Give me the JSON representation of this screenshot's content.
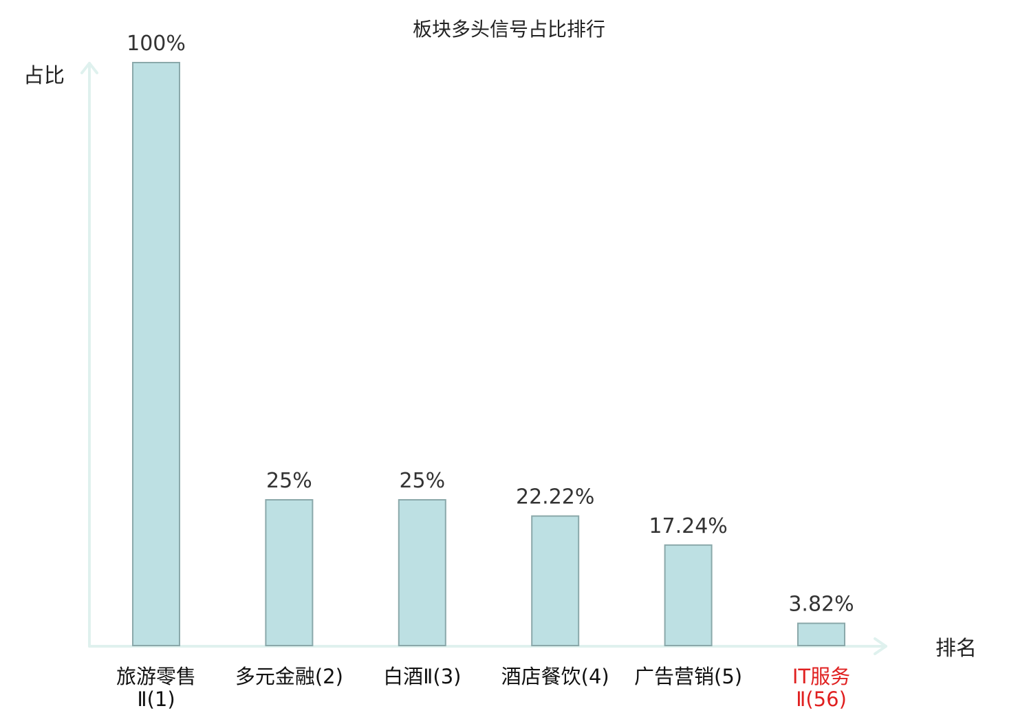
{
  "chart_data": {
    "type": "bar",
    "title": "板块多头信号占比排行",
    "ylabel": "占比",
    "xlabel": "排名",
    "categories": [
      {
        "lines": [
          "旅游零售",
          "Ⅱ(1)"
        ]
      },
      {
        "lines": [
          "多元金融(2)"
        ]
      },
      {
        "lines": [
          "白酒Ⅱ(3)"
        ]
      },
      {
        "lines": [
          "酒店餐饮(4)"
        ]
      },
      {
        "lines": [
          "广告营销(5)"
        ]
      },
      {
        "lines": [
          "IT服务",
          "Ⅱ(56)"
        ],
        "highlight": true
      }
    ],
    "values": [
      100,
      25,
      25,
      22.22,
      17.24,
      3.82
    ],
    "value_labels": [
      "100%",
      "25%",
      "25%",
      "22.22%",
      "17.24%",
      "3.82%"
    ],
    "ylim": [
      0,
      100
    ],
    "grid": false,
    "colors": {
      "bar_fill": "#bde0e3",
      "bar_stroke": "#8aa8aa",
      "axis": "#dff1ee",
      "label": "#333333",
      "highlight": "#e02020"
    }
  }
}
